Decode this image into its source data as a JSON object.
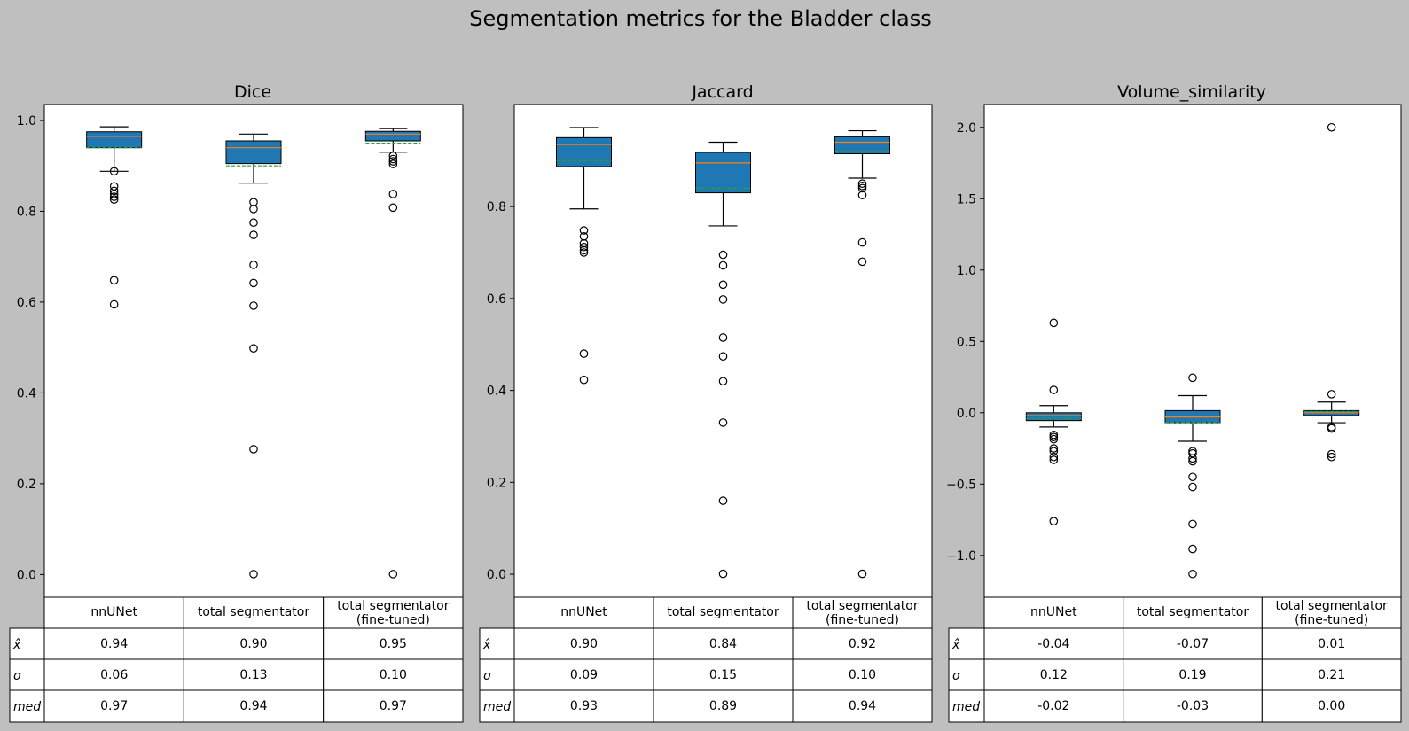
{
  "figure": {
    "title": "Segmentation metrics for the Bladder class"
  },
  "table": {
    "columns": [
      "nnUNet",
      "total segmentator",
      "total segmentator\n(fine-tuned)"
    ],
    "row_labels": [
      "x̂",
      "σ",
      "med"
    ]
  },
  "colors": {
    "background": "#bfbfbf",
    "box_fill": "#1f77b4",
    "median": "#ff7f0e",
    "mean": "#2ca02c"
  },
  "chart_data": [
    {
      "type": "box",
      "title": "Dice",
      "categories": [
        "nnUNet",
        "total segmentator",
        "total segmentator (fine-tuned)"
      ],
      "ylim": [
        -0.05,
        1.035
      ],
      "yticks": [
        0.0,
        0.2,
        0.4,
        0.6,
        0.8,
        1.0
      ],
      "ytick_labels": [
        "0.0",
        "0.2",
        "0.4",
        "0.6",
        "0.8",
        "1.0"
      ],
      "boxes": [
        {
          "whislo": 0.888,
          "q1": 0.94,
          "med": 0.965,
          "q3": 0.975,
          "whishi": 0.986,
          "mean": 0.94,
          "fliers": [
            0.888,
            0.855,
            0.845,
            0.838,
            0.832,
            0.826,
            0.648,
            0.595
          ]
        },
        {
          "whislo": 0.862,
          "q1": 0.905,
          "med": 0.94,
          "q3": 0.955,
          "whishi": 0.97,
          "mean": 0.9,
          "fliers": [
            0.82,
            0.805,
            0.775,
            0.748,
            0.682,
            0.642,
            0.592,
            0.498,
            0.276,
            0.001
          ]
        },
        {
          "whislo": 0.93,
          "q1": 0.955,
          "med": 0.97,
          "q3": 0.976,
          "whishi": 0.982,
          "mean": 0.95,
          "fliers": [
            0.922,
            0.915,
            0.91,
            0.904,
            0.838,
            0.808,
            0.001
          ]
        }
      ],
      "table": {
        "mean": [
          "0.94",
          "0.90",
          "0.95"
        ],
        "std": [
          "0.06",
          "0.13",
          "0.10"
        ],
        "median": [
          "0.97",
          "0.94",
          "0.97"
        ]
      }
    },
    {
      "type": "box",
      "title": "Jaccard",
      "categories": [
        "nnUNet",
        "total segmentator",
        "total segmentator (fine-tuned)"
      ],
      "ylim": [
        -0.05,
        1.022
      ],
      "yticks": [
        0.0,
        0.2,
        0.4,
        0.6,
        0.8
      ],
      "ytick_labels": [
        "0.0",
        "0.2",
        "0.4",
        "0.6",
        "0.8"
      ],
      "boxes": [
        {
          "whislo": 0.795,
          "q1": 0.887,
          "med": 0.935,
          "q3": 0.95,
          "whishi": 0.972,
          "mean": 0.9,
          "fliers": [
            0.748,
            0.735,
            0.72,
            0.712,
            0.705,
            0.7,
            0.48,
            0.423
          ]
        },
        {
          "whislo": 0.758,
          "q1": 0.83,
          "med": 0.895,
          "q3": 0.918,
          "whishi": 0.94,
          "mean": 0.84,
          "fliers": [
            0.695,
            0.672,
            0.63,
            0.598,
            0.515,
            0.474,
            0.42,
            0.33,
            0.16,
            0.001
          ]
        },
        {
          "whislo": 0.862,
          "q1": 0.915,
          "med": 0.94,
          "q3": 0.952,
          "whishi": 0.965,
          "mean": 0.92,
          "fliers": [
            0.85,
            0.845,
            0.84,
            0.825,
            0.722,
            0.68,
            0.001
          ]
        }
      ],
      "table": {
        "mean": [
          "0.90",
          "0.84",
          "0.92"
        ],
        "std": [
          "0.09",
          "0.15",
          "0.10"
        ],
        "median": [
          "0.93",
          "0.89",
          "0.94"
        ]
      }
    },
    {
      "type": "box",
      "title": "Volume_similarity",
      "categories": [
        "nnUNet",
        "total segmentator",
        "total segmentator (fine-tuned)"
      ],
      "ylim": [
        -1.293,
        2.16
      ],
      "yticks": [
        -1.0,
        -0.5,
        0.0,
        0.5,
        1.0,
        1.5,
        2.0
      ],
      "ytick_labels": [
        "−1.0",
        "−0.5",
        "0.0",
        "0.5",
        "1.0",
        "1.5",
        "2.0"
      ],
      "boxes": [
        {
          "whislo": -0.1,
          "q1": -0.055,
          "med": -0.02,
          "q3": 0.0,
          "whishi": 0.05,
          "mean": -0.04,
          "fliers": [
            0.63,
            0.16,
            -0.155,
            -0.17,
            -0.185,
            -0.25,
            -0.27,
            -0.31,
            -0.33,
            -0.76
          ]
        },
        {
          "whislo": -0.2,
          "q1": -0.07,
          "med": -0.03,
          "q3": 0.015,
          "whishi": 0.12,
          "mean": -0.07,
          "fliers": [
            0.245,
            -0.27,
            -0.285,
            -0.32,
            -0.34,
            -0.45,
            -0.52,
            -0.78,
            -0.955,
            -1.13
          ]
        },
        {
          "whislo": -0.07,
          "q1": -0.02,
          "med": 0.0,
          "q3": 0.015,
          "whishi": 0.075,
          "mean": 0.01,
          "fliers": [
            2.0,
            0.13,
            -0.1,
            -0.11,
            -0.29,
            -0.31
          ]
        }
      ],
      "table": {
        "mean": [
          "-0.04",
          "-0.07",
          "0.01"
        ],
        "std": [
          "0.12",
          "0.19",
          "0.21"
        ],
        "median": [
          "-0.02",
          "-0.03",
          "0.00"
        ]
      }
    }
  ]
}
